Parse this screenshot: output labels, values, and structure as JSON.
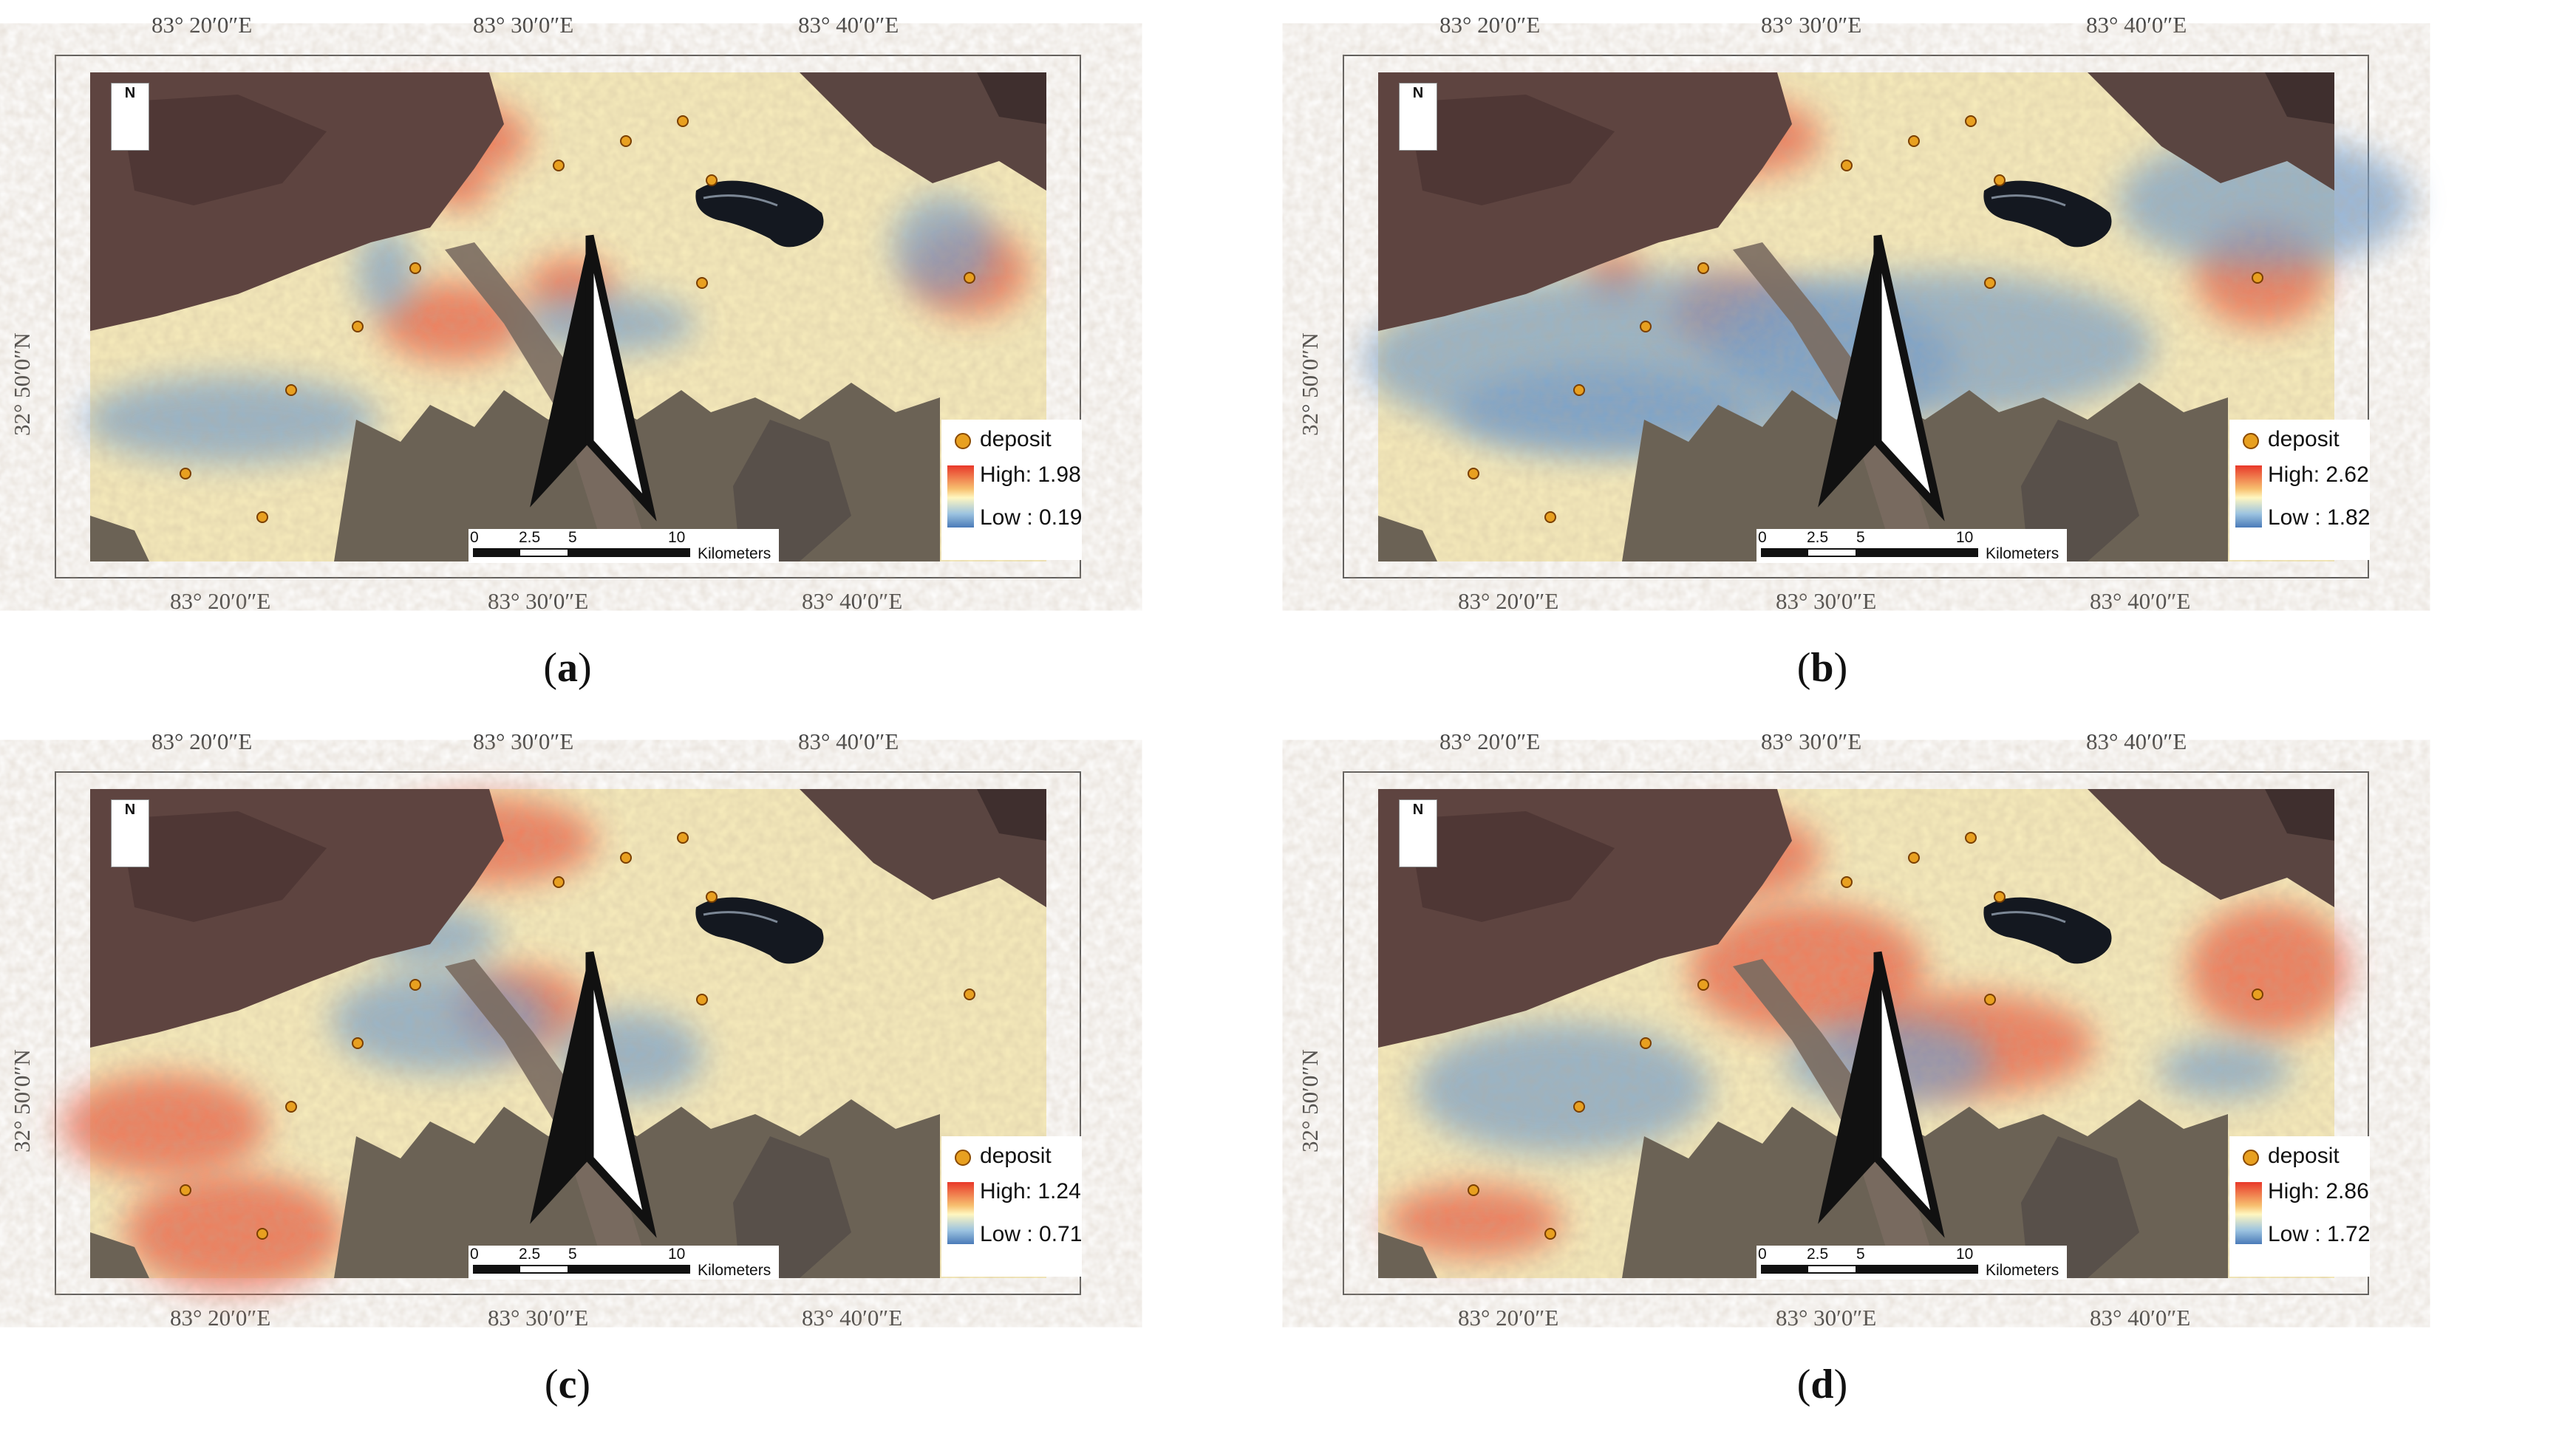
{
  "figure": {
    "panels": [
      {
        "id": "a",
        "caption_letter": "a",
        "high_label": "High: 1.98",
        "low_label": "Low : 0.19",
        "hot": [
          [
            400,
            60,
            130,
            60
          ],
          [
            440,
            310,
            100,
            55
          ],
          [
            620,
            270,
            60,
            40
          ],
          [
            1150,
            240,
            80,
            60
          ],
          [
            480,
            140,
            40,
            30
          ],
          [
            250,
            150,
            60,
            40
          ]
        ],
        "cold": [
          [
            90,
            440,
            200,
            60
          ],
          [
            380,
            240,
            40,
            60
          ],
          [
            640,
            320,
            120,
            40
          ],
          [
            1120,
            200,
            70,
            70
          ]
        ]
      },
      {
        "id": "b",
        "caption_letter": "b",
        "high_label": "High: 2.62",
        "low_label": "Low : 1.82",
        "hot": [
          [
            420,
            60,
            120,
            55
          ],
          [
            440,
            300,
            90,
            50
          ],
          [
            1150,
            240,
            90,
            70
          ],
          [
            300,
            260,
            40,
            30
          ]
        ],
        "cold": [
          [
            180,
            330,
            400,
            120
          ],
          [
            1100,
            130,
            200,
            90
          ],
          [
            600,
            320,
            300,
            100
          ],
          [
            200,
            430,
            200,
            60
          ]
        ]
      },
      {
        "id": "c",
        "caption_letter": "c",
        "high_label": "High: 1.24",
        "low_label": "Low : 0.71",
        "hot": [
          [
            460,
            40,
            150,
            60
          ],
          [
            120,
            560,
            150,
            80
          ],
          [
            30,
            420,
            140,
            70
          ],
          [
            540,
            270,
            90,
            55
          ],
          [
            250,
            150,
            60,
            40
          ]
        ],
        "cold": [
          [
            400,
            280,
            150,
            70
          ],
          [
            680,
            330,
            100,
            60
          ],
          [
            420,
            180,
            90,
            40
          ]
        ]
      },
      {
        "id": "d",
        "caption_letter": "d",
        "high_label": "High: 2.86",
        "low_label": "Low : 1.72",
        "hot": [
          [
            500,
            200,
            160,
            90
          ],
          [
            700,
            310,
            180,
            70
          ],
          [
            1150,
            200,
            110,
            90
          ],
          [
            420,
            60,
            120,
            60
          ],
          [
            70,
            560,
            120,
            50
          ]
        ],
        "cold": [
          [
            150,
            360,
            200,
            90
          ],
          [
            620,
            340,
            140,
            60
          ],
          [
            1100,
            360,
            90,
            40
          ]
        ]
      }
    ],
    "top_lon_labels": [
      "83° 20′0″E",
      "83° 30′0″E",
      "83° 40′0″E"
    ],
    "bottom_lon_labels": [
      "83° 20′0″E",
      "83° 30′0″E",
      "83° 40′0″E"
    ],
    "lat_label": "32° 50′0″N",
    "legend_deposit": "deposit",
    "north_label": "N",
    "scale_ticks": [
      "0",
      "2.5",
      "5",
      "10"
    ],
    "scale_unit": "Kilometers",
    "deposits": [
      [
        0.62,
        0.1
      ],
      [
        0.56,
        0.14
      ],
      [
        0.49,
        0.19
      ],
      [
        0.65,
        0.22
      ],
      [
        0.34,
        0.4
      ],
      [
        0.64,
        0.43
      ],
      [
        0.92,
        0.42
      ],
      [
        0.28,
        0.52
      ],
      [
        0.21,
        0.65
      ],
      [
        0.1,
        0.82
      ],
      [
        0.18,
        0.91
      ]
    ]
  }
}
